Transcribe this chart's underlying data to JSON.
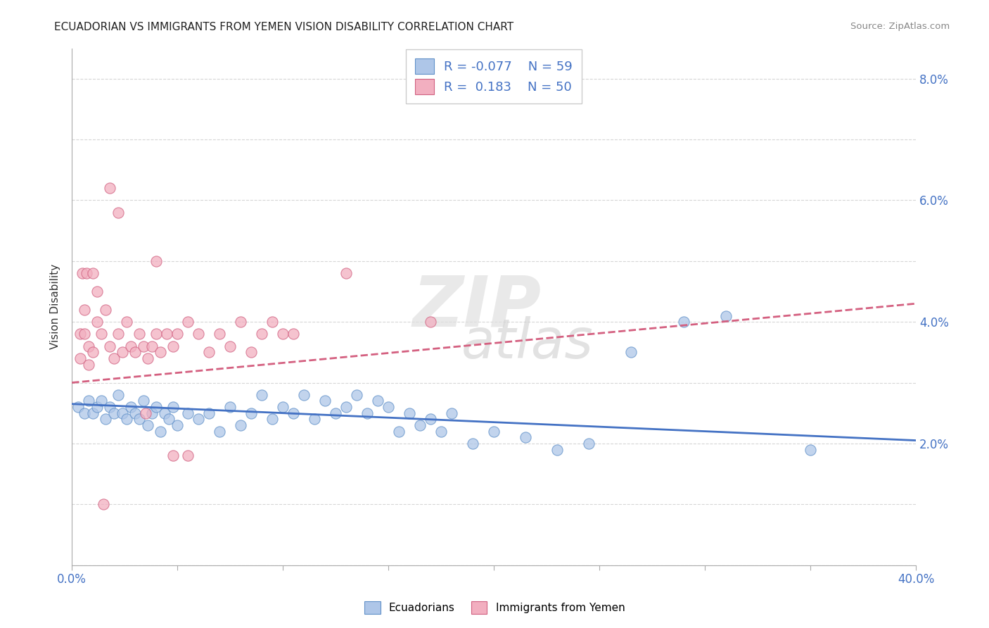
{
  "title": "ECUADORIAN VS IMMIGRANTS FROM YEMEN VISION DISABILITY CORRELATION CHART",
  "source": "Source: ZipAtlas.com",
  "ylabel": "Vision Disability",
  "xlim": [
    0.0,
    0.4
  ],
  "ylim": [
    0.0,
    0.085
  ],
  "xticks": [
    0.0,
    0.05,
    0.1,
    0.15,
    0.2,
    0.25,
    0.3,
    0.35,
    0.4
  ],
  "yticks": [
    0.0,
    0.01,
    0.02,
    0.03,
    0.04,
    0.05,
    0.06,
    0.07,
    0.08
  ],
  "blue_R": "-0.077",
  "blue_N": "59",
  "pink_R": "0.183",
  "pink_N": "50",
  "blue_scatter_color": "#aec6e8",
  "pink_scatter_color": "#f2afc0",
  "blue_edge_color": "#6090c8",
  "pink_edge_color": "#d06080",
  "blue_line_color": "#4472c4",
  "pink_line_color": "#d46080",
  "background_color": "#ffffff",
  "watermark_zip": "ZIP",
  "watermark_atlas": "atlas",
  "ecuadorians_scatter": [
    [
      0.003,
      0.026
    ],
    [
      0.006,
      0.025
    ],
    [
      0.008,
      0.027
    ],
    [
      0.01,
      0.025
    ],
    [
      0.012,
      0.026
    ],
    [
      0.014,
      0.027
    ],
    [
      0.016,
      0.024
    ],
    [
      0.018,
      0.026
    ],
    [
      0.02,
      0.025
    ],
    [
      0.022,
      0.028
    ],
    [
      0.024,
      0.025
    ],
    [
      0.026,
      0.024
    ],
    [
      0.028,
      0.026
    ],
    [
      0.03,
      0.025
    ],
    [
      0.032,
      0.024
    ],
    [
      0.034,
      0.027
    ],
    [
      0.036,
      0.023
    ],
    [
      0.038,
      0.025
    ],
    [
      0.04,
      0.026
    ],
    [
      0.042,
      0.022
    ],
    [
      0.044,
      0.025
    ],
    [
      0.046,
      0.024
    ],
    [
      0.048,
      0.026
    ],
    [
      0.05,
      0.023
    ],
    [
      0.055,
      0.025
    ],
    [
      0.06,
      0.024
    ],
    [
      0.065,
      0.025
    ],
    [
      0.07,
      0.022
    ],
    [
      0.075,
      0.026
    ],
    [
      0.08,
      0.023
    ],
    [
      0.085,
      0.025
    ],
    [
      0.09,
      0.028
    ],
    [
      0.095,
      0.024
    ],
    [
      0.1,
      0.026
    ],
    [
      0.105,
      0.025
    ],
    [
      0.11,
      0.028
    ],
    [
      0.115,
      0.024
    ],
    [
      0.12,
      0.027
    ],
    [
      0.125,
      0.025
    ],
    [
      0.13,
      0.026
    ],
    [
      0.135,
      0.028
    ],
    [
      0.14,
      0.025
    ],
    [
      0.145,
      0.027
    ],
    [
      0.15,
      0.026
    ],
    [
      0.155,
      0.022
    ],
    [
      0.16,
      0.025
    ],
    [
      0.165,
      0.023
    ],
    [
      0.17,
      0.024
    ],
    [
      0.175,
      0.022
    ],
    [
      0.18,
      0.025
    ],
    [
      0.19,
      0.02
    ],
    [
      0.2,
      0.022
    ],
    [
      0.215,
      0.021
    ],
    [
      0.23,
      0.019
    ],
    [
      0.245,
      0.02
    ],
    [
      0.265,
      0.035
    ],
    [
      0.29,
      0.04
    ],
    [
      0.31,
      0.041
    ],
    [
      0.35,
      0.019
    ]
  ],
  "yemen_scatter": [
    [
      0.004,
      0.038
    ],
    [
      0.006,
      0.042
    ],
    [
      0.008,
      0.036
    ],
    [
      0.01,
      0.035
    ],
    [
      0.012,
      0.04
    ],
    [
      0.014,
      0.038
    ],
    [
      0.016,
      0.042
    ],
    [
      0.018,
      0.036
    ],
    [
      0.02,
      0.034
    ],
    [
      0.022,
      0.038
    ],
    [
      0.024,
      0.035
    ],
    [
      0.026,
      0.04
    ],
    [
      0.028,
      0.036
    ],
    [
      0.03,
      0.035
    ],
    [
      0.032,
      0.038
    ],
    [
      0.034,
      0.036
    ],
    [
      0.036,
      0.034
    ],
    [
      0.038,
      0.036
    ],
    [
      0.04,
      0.038
    ],
    [
      0.004,
      0.034
    ],
    [
      0.006,
      0.038
    ],
    [
      0.008,
      0.033
    ],
    [
      0.005,
      0.048
    ],
    [
      0.007,
      0.048
    ],
    [
      0.01,
      0.048
    ],
    [
      0.012,
      0.045
    ],
    [
      0.04,
      0.05
    ],
    [
      0.042,
      0.035
    ],
    [
      0.045,
      0.038
    ],
    [
      0.048,
      0.036
    ],
    [
      0.05,
      0.038
    ],
    [
      0.055,
      0.04
    ],
    [
      0.06,
      0.038
    ],
    [
      0.065,
      0.035
    ],
    [
      0.07,
      0.038
    ],
    [
      0.075,
      0.036
    ],
    [
      0.08,
      0.04
    ],
    [
      0.085,
      0.035
    ],
    [
      0.09,
      0.038
    ],
    [
      0.095,
      0.04
    ],
    [
      0.1,
      0.038
    ],
    [
      0.018,
      0.062
    ],
    [
      0.022,
      0.058
    ],
    [
      0.13,
      0.048
    ],
    [
      0.17,
      0.04
    ],
    [
      0.048,
      0.018
    ],
    [
      0.055,
      0.018
    ],
    [
      0.105,
      0.038
    ],
    [
      0.035,
      0.025
    ],
    [
      0.015,
      0.01
    ]
  ]
}
